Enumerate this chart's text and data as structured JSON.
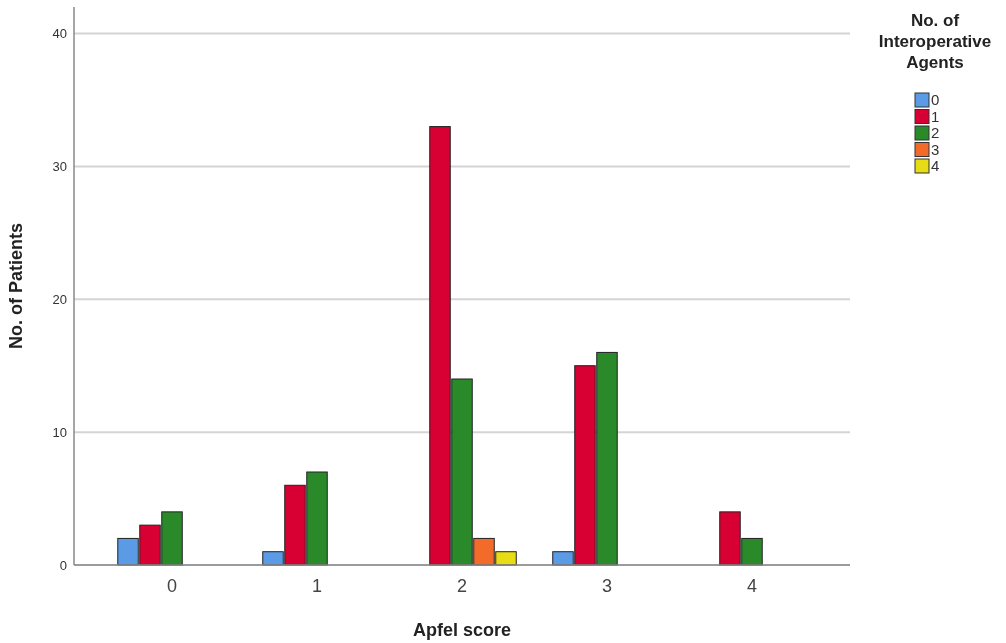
{
  "chart_data": {
    "type": "bar",
    "xlabel": "Apfel score",
    "ylabel": "No. of Patients",
    "legend_title": "No. of Interoperative Agents",
    "categories": [
      "0",
      "1",
      "2",
      "3",
      "4"
    ],
    "series": [
      {
        "name": "0",
        "color": "#5b9be6",
        "values": [
          2,
          1,
          0,
          1,
          0
        ]
      },
      {
        "name": "1",
        "color": "#d80032",
        "values": [
          3,
          6,
          33,
          15,
          4
        ]
      },
      {
        "name": "2",
        "color": "#2a8a2a",
        "values": [
          4,
          7,
          14,
          16,
          2
        ]
      },
      {
        "name": "3",
        "color": "#f26b2a",
        "values": [
          0,
          0,
          2,
          0,
          0
        ]
      },
      {
        "name": "4",
        "color": "#e8dc14",
        "values": [
          0,
          0,
          1,
          0,
          0
        ]
      }
    ],
    "ylim": [
      0,
      42
    ],
    "yticks": [
      0,
      10,
      20,
      30,
      40
    ],
    "grid": "y",
    "legend": "top right"
  }
}
